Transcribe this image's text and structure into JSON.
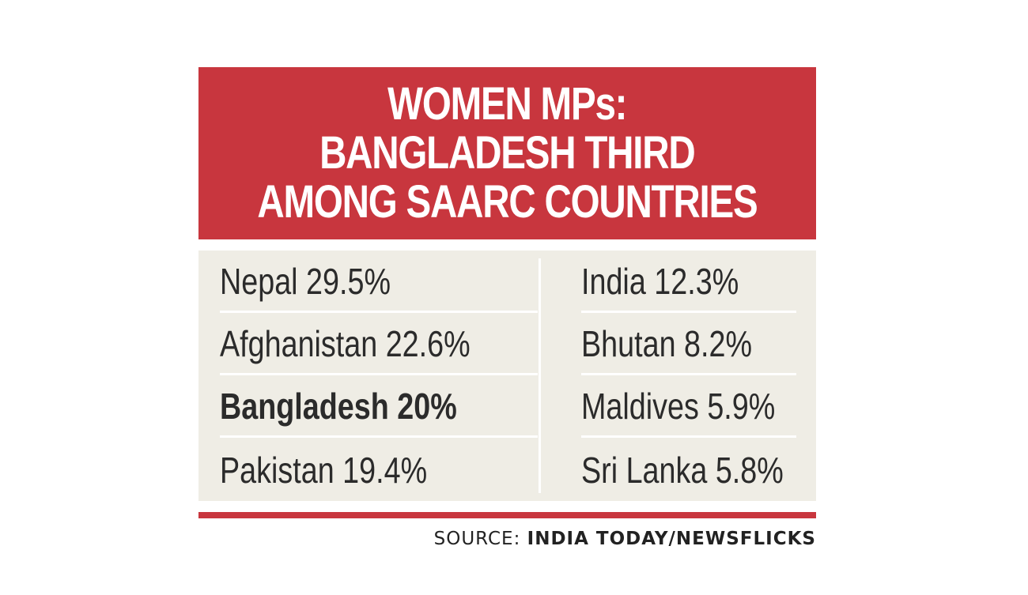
{
  "header": {
    "lines": [
      "WOMEN MPs:",
      "BANGLADESH THIRD",
      "AMONG SAARC COUNTRIES"
    ]
  },
  "chart_data": {
    "type": "table",
    "title": "WOMEN MPs: BANGLADESH THIRD AMONG SAARC COUNTRIES",
    "highlight": "Bangladesh",
    "rows": [
      {
        "country": "Nepal",
        "value": 29.5,
        "text": "Nepal 29.5%"
      },
      {
        "country": "Afghanistan",
        "value": 22.6,
        "text": "Afghanistan 22.6%"
      },
      {
        "country": "Bangladesh",
        "value": 20,
        "text": "Bangladesh 20%"
      },
      {
        "country": "Pakistan",
        "value": 19.4,
        "text": "Pakistan 19.4%"
      },
      {
        "country": "India",
        "value": 12.3,
        "text": "India 12.3%"
      },
      {
        "country": "Bhutan",
        "value": 8.2,
        "text": "Bhutan 8.2%"
      },
      {
        "country": "Maldives",
        "value": 5.9,
        "text": "Maldives 5.9%"
      },
      {
        "country": "Sri Lanka",
        "value": 5.8,
        "text": "Sri Lanka 5.8%"
      }
    ]
  },
  "source": {
    "label": "SOURCE:",
    "name": "INDIA TODAY/NEWSFLICKS"
  },
  "colors": {
    "accent": "#c8363e",
    "table_bg": "#efede5",
    "text": "#2b2b2b"
  }
}
